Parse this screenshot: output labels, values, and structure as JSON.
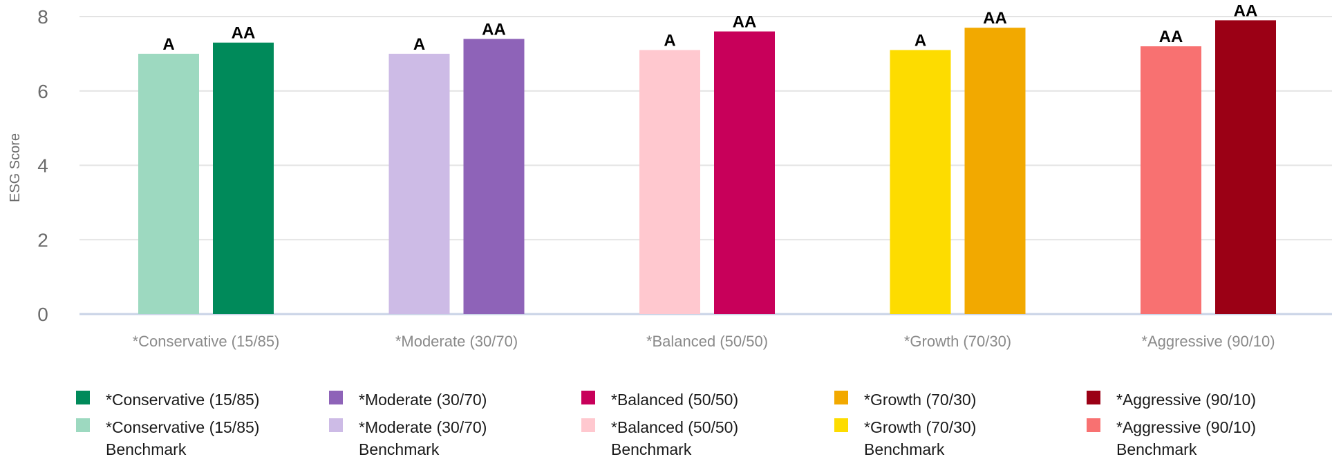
{
  "chart_data": {
    "type": "bar",
    "ylabel": "ESG Score",
    "xlabel": "",
    "ylim": [
      0,
      8
    ],
    "yticks": [
      0,
      2,
      4,
      6,
      8
    ],
    "grid": true,
    "legend_position": "bottom",
    "categories": [
      "*Conservative (15/85)",
      "*Moderate (30/70)",
      "*Balanced (50/50)",
      "*Growth (70/30)",
      "*Aggressive (90/10)"
    ],
    "series": [
      {
        "role": "benchmark",
        "values": [
          7.0,
          7.0,
          7.1,
          7.1,
          7.2
        ],
        "labels": [
          "A",
          "A",
          "A",
          "A",
          "AA"
        ],
        "colors": [
          "#9dd9c0",
          "#cdbbe6",
          "#ffc8cf",
          "#fddc00",
          "#f87171"
        ]
      },
      {
        "role": "portfolio",
        "values": [
          7.3,
          7.4,
          7.6,
          7.7,
          7.9
        ],
        "labels": [
          "AA",
          "AA",
          "AA",
          "AA",
          "AA"
        ],
        "colors": [
          "#008a5a",
          "#8e63b8",
          "#c8005a",
          "#f2a900",
          "#9b0015"
        ]
      }
    ],
    "legend": [
      {
        "label": "*Conservative (15/85)",
        "color": "#008a5a"
      },
      {
        "label": "*Conservative (15/85)",
        "sub": "Benchmark",
        "color": "#9dd9c0"
      },
      {
        "label": "*Moderate (30/70)",
        "color": "#8e63b8"
      },
      {
        "label": "*Moderate (30/70)",
        "sub": "Benchmark",
        "color": "#cdbbe6"
      },
      {
        "label": "*Balanced (50/50)",
        "color": "#c8005a"
      },
      {
        "label": "*Balanced (50/50)",
        "sub": "Benchmark",
        "color": "#ffc8cf"
      },
      {
        "label": "*Growth (70/30)",
        "color": "#f2a900"
      },
      {
        "label": "*Growth (70/30)",
        "sub": "Benchmark",
        "color": "#fddc00"
      },
      {
        "label": "*Aggressive (90/10)",
        "color": "#9b0015"
      },
      {
        "label": "*Aggressive (90/10)",
        "sub": "Benchmark",
        "color": "#f87171"
      }
    ]
  }
}
